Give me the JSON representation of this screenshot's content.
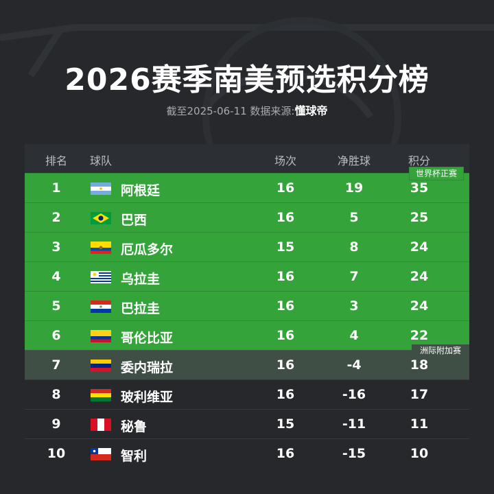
{
  "header": {
    "title": "2026赛季南美预选积分榜",
    "subtitle_prefix": "截至2025-06-11  数据来源:",
    "brand": "懂球帝"
  },
  "table": {
    "columns": {
      "rank": "排名",
      "team": "球队",
      "played": "场次",
      "goal_diff": "净胜球",
      "points": "积分"
    },
    "tags": {
      "world_cup": "世界杯正赛",
      "playoff": "洲际附加赛"
    },
    "rows": [
      {
        "rank": "1",
        "team": "阿根廷",
        "flag": "argentina-flag",
        "played": "16",
        "goal_diff": "19",
        "points": "35"
      },
      {
        "rank": "2",
        "team": "巴西",
        "flag": "brazil-flag",
        "played": "16",
        "goal_diff": "5",
        "points": "25"
      },
      {
        "rank": "3",
        "team": "厄瓜多尔",
        "flag": "ecuador-flag",
        "played": "15",
        "goal_diff": "8",
        "points": "24"
      },
      {
        "rank": "4",
        "team": "乌拉圭",
        "flag": "uruguay-flag",
        "played": "16",
        "goal_diff": "7",
        "points": "24"
      },
      {
        "rank": "5",
        "team": "巴拉圭",
        "flag": "paraguay-flag",
        "played": "16",
        "goal_diff": "3",
        "points": "24"
      },
      {
        "rank": "6",
        "team": "哥伦比亚",
        "flag": "colombia-flag",
        "played": "16",
        "goal_diff": "4",
        "points": "22"
      },
      {
        "rank": "7",
        "team": "委内瑞拉",
        "flag": "venezuela-flag",
        "played": "16",
        "goal_diff": "-4",
        "points": "18"
      },
      {
        "rank": "8",
        "team": "玻利维亚",
        "flag": "bolivia-flag",
        "played": "16",
        "goal_diff": "-16",
        "points": "17"
      },
      {
        "rank": "9",
        "team": "秘鲁",
        "flag": "peru-flag",
        "played": "15",
        "goal_diff": "-11",
        "points": "11"
      },
      {
        "rank": "10",
        "team": "智利",
        "flag": "chile-flag",
        "played": "16",
        "goal_diff": "-15",
        "points": "10"
      }
    ]
  },
  "colors": {
    "background": "#26282c",
    "qualify_green": "#33a33a",
    "playoff_gray": "#3f4f46"
  }
}
